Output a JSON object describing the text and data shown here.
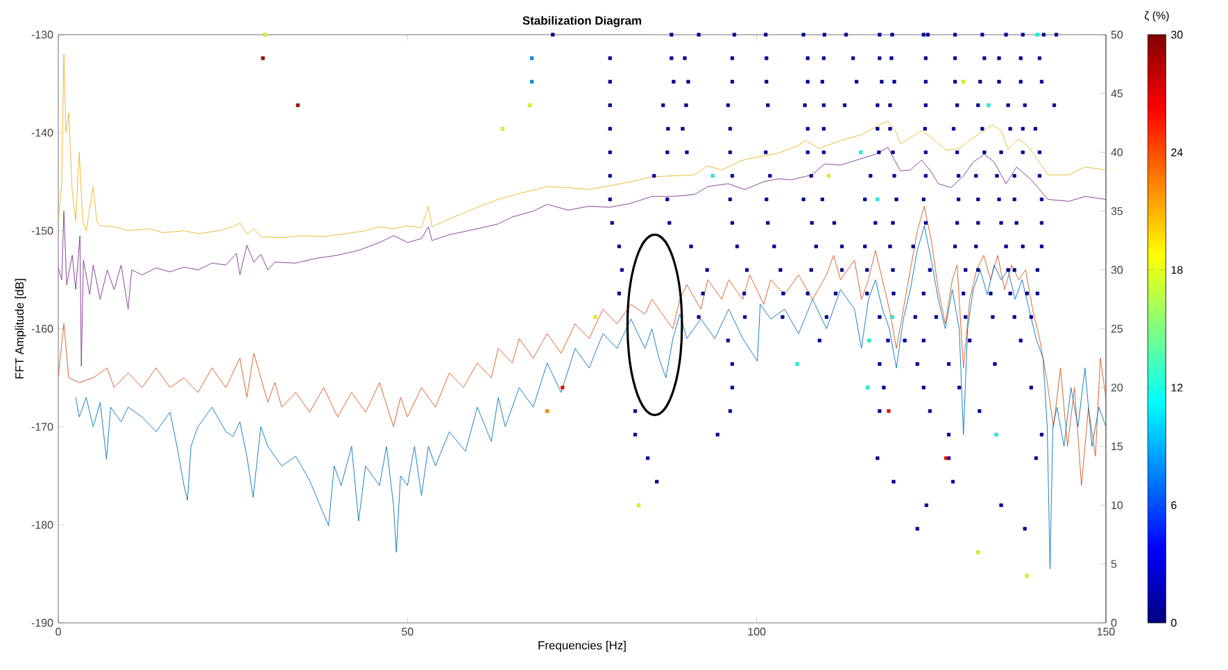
{
  "chart_data": {
    "type": "line",
    "title": "Stabilization Diagram",
    "xlabel": "Frequencies [Hz]",
    "ylabel": "FFT Amplitude [dB]",
    "clabel": "ζ (%)",
    "xlim": [
      0,
      150
    ],
    "xticks": [
      0,
      50,
      100,
      150
    ],
    "ylim": [
      -190,
      -130
    ],
    "yticks": [
      -190,
      -180,
      -170,
      -160,
      -150,
      -140,
      -130
    ],
    "y2lim": [
      0,
      50
    ],
    "y2ticks": [
      0,
      5,
      10,
      15,
      20,
      25,
      30,
      35,
      40,
      45,
      50
    ],
    "clim": [
      0,
      30
    ],
    "cticks": [
      0,
      6,
      12,
      18,
      24,
      30
    ],
    "series": [
      {
        "color": "#edb120",
        "x": [
          0,
          0.5,
          0.8,
          1.1,
          1.5,
          2,
          2.5,
          3,
          3.5,
          4,
          5,
          5.5,
          6,
          8,
          10,
          13,
          15,
          18,
          20,
          23,
          25,
          26,
          27,
          28,
          29,
          32,
          35,
          38,
          41,
          44,
          46,
          48,
          50,
          52,
          53,
          53.5,
          56,
          60,
          63,
          66,
          70,
          73,
          76,
          79,
          82,
          85,
          88,
          91,
          93,
          95,
          98,
          100,
          103,
          106,
          107,
          109,
          112,
          115,
          117.9,
          118.8,
          120,
          120.6,
          122,
          123.6,
          125,
          127.2,
          129,
          131,
          133.8,
          135,
          136,
          137.5,
          139,
          141.7,
          144.7,
          147,
          150
        ],
        "values": [
          -149,
          -145,
          -132,
          -140,
          -138,
          -146,
          -149,
          -142,
          -149,
          -150,
          -145.5,
          -149,
          -149.5,
          -149.6,
          -150,
          -149.8,
          -150.2,
          -150,
          -150.3,
          -150,
          -149.6,
          -149.2,
          -150.3,
          -149.8,
          -150.6,
          -150.7,
          -150.5,
          -150.6,
          -150.3,
          -150,
          -149.6,
          -149.8,
          -149.5,
          -149.7,
          -147.5,
          -149.6,
          -148.8,
          -147.6,
          -146.8,
          -146.2,
          -145.5,
          -145.6,
          -145.8,
          -145.4,
          -145,
          -144.5,
          -144.4,
          -144.3,
          -143.4,
          -143.8,
          -142.8,
          -142.5,
          -142.1,
          -141.3,
          -140.8,
          -141.6,
          -140.8,
          -140.2,
          -139.1,
          -138.8,
          -140,
          -141.1,
          -140.5,
          -139.8,
          -140.5,
          -141.8,
          -141.6,
          -140.5,
          -139.2,
          -139.8,
          -141.7,
          -140.6,
          -141.5,
          -144.3,
          -144.3,
          -143.5,
          -143.8
        ]
      },
      {
        "color": "#7e2f8e",
        "x": [
          0,
          0.5,
          0.8,
          1.2,
          2,
          2.5,
          3.1,
          3.3,
          3.6,
          4.5,
          5,
          6,
          7,
          8,
          9,
          10,
          10.5,
          12,
          14,
          16,
          18,
          20,
          22,
          24,
          25.5,
          26,
          27,
          28,
          29,
          30,
          31,
          34,
          37,
          40,
          43,
          46,
          48,
          50,
          52,
          53,
          53.5,
          56,
          60,
          63,
          65,
          68,
          70,
          73,
          76,
          79,
          82,
          85,
          88,
          91.1,
          93,
          95.9,
          98.3,
          101,
          103.1,
          105,
          107.9,
          109.7,
          112,
          115.2,
          117,
          118.8,
          119.5,
          120.6,
          122,
          123.6,
          125,
          126,
          127.8,
          129.5,
          131,
          132.6,
          134,
          135.7,
          137.2,
          139.3,
          141.7,
          144.7,
          147,
          150
        ],
        "values": [
          -153.8,
          -155,
          -148,
          -155.5,
          -152.5,
          -156,
          -150.5,
          -163.8,
          -153,
          -156.5,
          -153.5,
          -157,
          -154,
          -156,
          -153.5,
          -158,
          -154,
          -154.5,
          -153.8,
          -154.2,
          -153.7,
          -154,
          -153.3,
          -153.5,
          -152.3,
          -154.5,
          -151.5,
          -153.2,
          -152.4,
          -154,
          -153.2,
          -153.3,
          -152.8,
          -152.5,
          -152,
          -151.2,
          -150.5,
          -151.2,
          -150.8,
          -149.6,
          -151,
          -150.4,
          -149.8,
          -149.3,
          -148.6,
          -148,
          -147.3,
          -147.9,
          -147.5,
          -147.6,
          -147.2,
          -146.5,
          -146.5,
          -146.3,
          -145.5,
          -145.2,
          -145.8,
          -145,
          -144.7,
          -144.8,
          -144.3,
          -143.2,
          -143.3,
          -142.6,
          -142.2,
          -141.5,
          -142.5,
          -143.9,
          -143.8,
          -142.8,
          -144,
          -145.2,
          -145.6,
          -144.5,
          -143,
          -142.2,
          -143,
          -145.2,
          -143.5,
          -144.8,
          -146.8,
          -147,
          -146.5,
          -146.8
        ]
      },
      {
        "color": "#d95319",
        "x": [
          0,
          0.8,
          1.5,
          3,
          5,
          7,
          8,
          10,
          12,
          14,
          16,
          18,
          20,
          22,
          24,
          26,
          27,
          28,
          29,
          30,
          31,
          32,
          34,
          36,
          38,
          40,
          42,
          44,
          46,
          48,
          49,
          50,
          52,
          54,
          56,
          58,
          60,
          62,
          63,
          65,
          66,
          68,
          70,
          72,
          74,
          76,
          78,
          80,
          82,
          84,
          85,
          87,
          88,
          89,
          90,
          92,
          93,
          95,
          96,
          98,
          99,
          101,
          102,
          104,
          106,
          108,
          110,
          111,
          112,
          114,
          115,
          116,
          117,
          118,
          119,
          120,
          121,
          122,
          123,
          124,
          125,
          126,
          127,
          128,
          128.7,
          129.6,
          130.5,
          131.5,
          132.5,
          133.5,
          134.5,
          135.5,
          136.5,
          137.5,
          138.5,
          139.5,
          140.5,
          141.5,
          142.5,
          143.5,
          144.5,
          145.5,
          146.5,
          147.5,
          148.5,
          149.2,
          150
        ],
        "values": [
          -164.8,
          -159.5,
          -165,
          -165.5,
          -165,
          -164,
          -166,
          -164.5,
          -166,
          -164,
          -166,
          -165,
          -166.5,
          -164,
          -166,
          -163,
          -167,
          -162.5,
          -165,
          -167.5,
          -165.5,
          -168,
          -166.5,
          -168.5,
          -166,
          -169,
          -166.5,
          -168.5,
          -165.5,
          -170,
          -167,
          -169,
          -166,
          -168,
          -164.5,
          -166,
          -163.5,
          -165,
          -162,
          -163.5,
          -161,
          -163,
          -160.5,
          -162.5,
          -159.5,
          -161,
          -158,
          -159.5,
          -157.5,
          -158.5,
          -157,
          -159,
          -160,
          -157,
          -155.5,
          -158,
          -155,
          -157,
          -155,
          -157,
          -154.5,
          -157.5,
          -155,
          -156.5,
          -154.5,
          -157,
          -154.5,
          -152.5,
          -155,
          -153,
          -157,
          -155,
          -152,
          -155,
          -158,
          -162,
          -158,
          -154,
          -150,
          -147.5,
          -151,
          -156,
          -159.5,
          -155,
          -153.5,
          -164,
          -157,
          -154,
          -152.5,
          -155,
          -152.5,
          -156,
          -153.5,
          -155,
          -154,
          -158,
          -161,
          -165,
          -170,
          -164,
          -172,
          -166,
          -176,
          -168,
          -173,
          -163,
          -167
        ]
      },
      {
        "color": "#0072bd",
        "x": [
          2.5,
          3,
          4,
          5,
          6,
          6.9,
          7.5,
          9,
          10,
          12,
          14,
          16,
          17,
          18,
          18.5,
          19,
          20,
          22,
          24,
          25,
          26,
          27,
          27.9,
          29,
          30,
          32,
          34,
          36,
          38.7,
          39.5,
          40.5,
          42,
          43,
          44,
          46,
          47,
          48,
          48.4,
          49,
          50,
          51,
          52,
          53,
          54,
          56,
          58.3,
          60,
          62,
          63,
          64,
          66,
          68,
          70,
          72,
          74,
          76,
          78,
          80,
          82,
          84,
          85,
          86,
          87,
          88,
          89,
          90,
          92,
          94,
          96,
          98,
          100.1,
          100.5,
          102,
          104,
          106,
          108,
          110,
          112,
          114,
          115,
          116,
          117,
          118,
          119,
          120,
          121,
          122,
          123,
          124,
          125,
          126,
          127,
          128,
          129,
          129.6,
          130.2,
          131,
          132,
          133,
          134,
          135,
          136,
          137,
          138,
          139,
          140,
          141,
          141.6,
          142,
          142.4,
          143,
          144,
          145,
          146,
          147,
          148,
          149,
          150
        ],
        "values": [
          -167,
          -169,
          -167,
          -170,
          -167.5,
          -173.3,
          -168,
          -169.5,
          -168,
          -169,
          -170.5,
          -168.5,
          -172,
          -176,
          -177.5,
          -172,
          -170,
          -168,
          -170.5,
          -171,
          -169.5,
          -173,
          -177.2,
          -170,
          -172,
          -174,
          -173,
          -175.5,
          -180.1,
          -174,
          -176,
          -172,
          -179.6,
          -174,
          -176,
          -172,
          -178,
          -182.8,
          -175,
          -176,
          -172,
          -177,
          -172,
          -174,
          -170.5,
          -172.5,
          -168,
          -171.5,
          -167,
          -170,
          -166,
          -168,
          -163.5,
          -166.5,
          -162,
          -164,
          -160.5,
          -162,
          -159,
          -162,
          -160,
          -163,
          -165,
          -161,
          -158.5,
          -161,
          -159,
          -161,
          -158,
          -161,
          -163.3,
          -157.5,
          -159,
          -158,
          -160.5,
          -157,
          -160,
          -156,
          -158,
          -162,
          -157,
          -155,
          -158,
          -160,
          -164,
          -159,
          -156,
          -152,
          -149.5,
          -153,
          -157,
          -160,
          -156,
          -160,
          -170.8,
          -160,
          -156,
          -154,
          -156.5,
          -153.5,
          -155,
          -154,
          -157,
          -155,
          -158,
          -161,
          -163,
          -170,
          -184.5,
          -170,
          -168,
          -172,
          -166,
          -170,
          -164,
          -172,
          -168,
          -170
        ]
      },
      {
        "type": "scatter",
        "axis": "y2",
        "marker": "square",
        "x": [
          70.8,
          87.8,
          91.7,
          96.8,
          101.3,
          106.7,
          109.7,
          112.8,
          117.6,
          119.4,
          123.9,
          124.5,
          128.4,
          132.3,
          135.7,
          138.1,
          141.1,
          142.9
        ],
        "values": [
          50,
          50,
          50,
          50,
          50,
          50,
          50,
          50,
          50,
          50,
          50,
          50,
          50,
          50,
          50,
          50,
          50,
          50
        ],
        "cvalues": [
          1,
          1,
          1,
          1,
          1,
          1,
          1,
          1,
          1,
          1,
          1,
          1,
          1,
          1,
          1,
          1,
          1,
          1
        ]
      },
      {
        "type": "scatter",
        "axis": "y2",
        "marker": "square",
        "x": [
          79.0,
          87.8,
          89.7,
          96.5,
          101.4,
          107.3,
          109.6,
          113.8,
          117.6,
          119.3,
          124.2,
          128.4,
          132.6,
          134.7,
          137.8,
          140.5
        ],
        "values": [
          48,
          48,
          48,
          48,
          48,
          48,
          48,
          48,
          48,
          48,
          48,
          48,
          48,
          48,
          48,
          48
        ],
        "cvalues": [
          1,
          1,
          1,
          1,
          1,
          1,
          1,
          1,
          1,
          1,
          1,
          1,
          1,
          1,
          1,
          1
        ]
      },
      {
        "type": "scatter",
        "axis": "y2",
        "marker": "square",
        "x": [
          79.0,
          88.1,
          90.2,
          96.5,
          101.4,
          107.3,
          109.4,
          114.3,
          117.9,
          119.7,
          124.2,
          128.4,
          132.0,
          134.7,
          137.8,
          140.8
        ],
        "values": [
          46,
          46,
          46,
          46,
          46,
          46,
          46,
          46,
          46,
          46,
          46,
          46,
          46,
          46,
          46,
          46
        ],
        "cvalues": [
          1,
          1,
          1,
          1,
          1,
          1,
          1,
          1,
          1,
          1,
          1,
          1,
          1,
          1,
          1,
          1
        ]
      },
      {
        "type": "scatter",
        "axis": "y2",
        "marker": "square",
        "x": [
          79.0,
          86.6,
          89.9,
          95.9,
          101.6,
          106.9,
          109.6,
          112.6,
          117.3,
          119.1,
          124.2,
          128.7,
          131.7,
          136.0,
          138.4,
          142.6
        ],
        "values": [
          44,
          44,
          44,
          44,
          44,
          44,
          44,
          44,
          44,
          44,
          44,
          44,
          44,
          44,
          44,
          44
        ],
        "cvalues": [
          1,
          1,
          1,
          1,
          1,
          1,
          1,
          1,
          1,
          1,
          1,
          1,
          1,
          1,
          1,
          1
        ]
      },
      {
        "type": "scatter",
        "axis": "y2",
        "marker": "square",
        "x": [
          79.0,
          87.3,
          89.4,
          96.2,
          107.3,
          109.6,
          117.3,
          119.1,
          124.1,
          128.2,
          132.3,
          136.3,
          138.1,
          139.9
        ],
        "values": [
          42,
          42,
          42,
          42,
          42,
          42,
          42,
          42,
          42,
          42,
          42,
          42,
          42,
          42
        ],
        "cvalues": [
          1,
          1,
          1,
          1,
          1,
          1,
          1,
          1,
          1,
          1,
          1,
          1,
          1,
          1
        ]
      },
      {
        "type": "scatter",
        "axis": "y2",
        "marker": "square",
        "x": [
          79.0,
          87.2,
          90.0,
          96.2,
          101.3,
          107.3,
          109.6,
          117.5,
          119.5,
          124.2,
          128.7,
          132.6,
          135.0,
          138.1,
          140.5
        ],
        "values": [
          40,
          40,
          40,
          40,
          40,
          40,
          40,
          40,
          40,
          40,
          40,
          40,
          40,
          40,
          40
        ],
        "cvalues": [
          1,
          1,
          1,
          1,
          1,
          1,
          1,
          1,
          1,
          1,
          1,
          1,
          1,
          1,
          1
        ]
      },
      {
        "type": "scatter",
        "axis": "y2",
        "marker": "square",
        "x": [
          79.0,
          85.3,
          96.5,
          101.9,
          107.8,
          116.3,
          119.7,
          124.2,
          128.9,
          131.4,
          134.4,
          136.9,
          140.5
        ],
        "values": [
          38,
          38,
          38,
          38,
          38,
          38,
          38,
          38,
          38,
          38,
          38,
          38,
          38
        ],
        "cvalues": [
          1,
          1,
          1,
          1,
          1,
          1,
          1,
          1,
          1,
          1,
          1,
          1,
          1
        ]
      },
      {
        "type": "scatter",
        "axis": "y2",
        "marker": "square",
        "x": [
          79.0,
          87.2,
          96.2,
          101.4,
          106.7,
          109.4,
          115.5,
          120.0,
          123.9,
          128.9,
          131.7,
          134.7,
          136.9,
          140.8
        ],
        "values": [
          36,
          36,
          36,
          36,
          36,
          36,
          36,
          36,
          36,
          36,
          36,
          36,
          36,
          36
        ],
        "cvalues": [
          1,
          1,
          1,
          1,
          1,
          1,
          1,
          1,
          1,
          1,
          1,
          1,
          1,
          1
        ]
      },
      {
        "type": "scatter",
        "axis": "y2",
        "marker": "square",
        "x": [
          79.3,
          87.5,
          96.5,
          101.6,
          107.9,
          111.1,
          117.0,
          119.5,
          124.2,
          128.7,
          131.7,
          135.0,
          137.2,
          140.8
        ],
        "values": [
          34,
          34,
          34,
          34,
          34,
          34,
          34,
          34,
          34,
          34,
          34,
          34,
          34,
          34
        ],
        "cvalues": [
          1,
          1,
          1,
          1,
          1,
          1,
          1,
          1,
          1,
          1,
          1,
          1,
          1,
          1
        ]
      },
      {
        "type": "scatter",
        "axis": "y2",
        "marker": "square",
        "x": [
          80.3,
          90.6,
          97.2,
          102.5,
          108.5,
          112.2,
          115.5,
          119.1,
          122.4,
          128.4,
          131.4,
          135.7,
          138.1,
          140.8
        ],
        "values": [
          32,
          32,
          32,
          32,
          32,
          32,
          32,
          32,
          32,
          32,
          32,
          32,
          32,
          32
        ],
        "cvalues": [
          1,
          1,
          1,
          1,
          1,
          1,
          1,
          1,
          1,
          1,
          1,
          1,
          1,
          1
        ]
      },
      {
        "type": "scatter",
        "axis": "y2",
        "marker": "square",
        "x": [
          80.7,
          92.9,
          98.6,
          103.4,
          107.8,
          112.2,
          115.8,
          119.5,
          124.8,
          129.9,
          131.7,
          136.0,
          136.9,
          140.2
        ],
        "values": [
          30,
          30,
          30,
          30,
          30,
          30,
          30,
          30,
          30,
          30,
          30,
          30,
          30,
          30
        ],
        "cvalues": [
          1,
          1,
          1,
          1,
          1,
          1,
          1,
          1,
          1,
          1,
          1,
          1,
          1,
          1
        ]
      },
      {
        "type": "scatter",
        "axis": "y2",
        "marker": "square",
        "x": [
          80.3,
          92.3,
          98.2,
          103.8,
          107.3,
          111.3,
          115.8,
          119.6,
          123.9,
          129.6,
          133.5,
          136.3,
          138.7,
          140.2
        ],
        "values": [
          28,
          28,
          28,
          28,
          28,
          28,
          28,
          28,
          28,
          28,
          28,
          28,
          28,
          28
        ],
        "cvalues": [
          1,
          1,
          1,
          1,
          1,
          1,
          1,
          1,
          1,
          1,
          1,
          1,
          1,
          1
        ]
      },
      {
        "type": "scatter",
        "axis": "y2",
        "marker": "square",
        "x": [
          91.7,
          98.3,
          103.7,
          110.0,
          117.6,
          122.7,
          125.7,
          129.9,
          133.8,
          136.9,
          139.3
        ],
        "values": [
          26,
          26,
          26,
          26,
          26,
          26,
          26,
          26,
          26,
          26,
          26
        ],
        "cvalues": [
          1,
          1,
          1,
          1,
          1,
          1,
          1,
          1,
          1,
          1,
          1
        ]
      },
      {
        "type": "scatter",
        "axis": "y2",
        "marker": "square",
        "x": [
          95.9,
          109.0,
          118.8,
          121.2,
          123.9,
          130.5,
          137.8
        ],
        "values": [
          24,
          24,
          24,
          24,
          24,
          24,
          24
        ],
        "cvalues": [
          1,
          1,
          1,
          1,
          1,
          1,
          1
        ]
      },
      {
        "type": "scatter",
        "axis": "y2",
        "marker": "square",
        "x": [
          96.5,
          117.6,
          123.0,
          127.5,
          134.1
        ],
        "values": [
          22,
          22,
          22,
          22,
          22
        ],
        "cvalues": [
          1,
          1,
          1,
          1,
          1
        ]
      },
      {
        "type": "scatter",
        "axis": "y2",
        "marker": "square",
        "x": [
          96.5,
          118.2,
          123.9,
          129.0,
          139.3
        ],
        "values": [
          20,
          20,
          20,
          20,
          20
        ],
        "cvalues": [
          1,
          1,
          1,
          1,
          1
        ]
      },
      {
        "type": "scatter",
        "axis": "y2",
        "marker": "square",
        "x": [
          82.6,
          96.2,
          117.6,
          124.8,
          131.9
        ],
        "values": [
          18,
          18,
          18,
          18,
          18
        ],
        "cvalues": [
          1,
          1,
          1,
          1,
          1
        ]
      },
      {
        "type": "scatter",
        "axis": "y2",
        "marker": "square",
        "x": [
          82.6,
          94.4,
          127.5,
          140.8
        ],
        "values": [
          16,
          16,
          16,
          16
        ],
        "cvalues": [
          1,
          1,
          1,
          1
        ]
      },
      {
        "type": "scatter",
        "axis": "y2",
        "marker": "square",
        "x": [
          84.4,
          117.3,
          127.5,
          140.0
        ],
        "values": [
          14,
          14,
          14,
          14
        ],
        "cvalues": [
          1,
          1,
          1,
          1
        ]
      },
      {
        "type": "scatter",
        "axis": "y2",
        "marker": "square",
        "x": [
          85.7,
          119.6,
          128.1
        ],
        "values": [
          12,
          12,
          12
        ],
        "cvalues": [
          1,
          1,
          1
        ]
      },
      {
        "type": "scatter",
        "axis": "y2",
        "marker": "square",
        "x": [
          124.3,
          135.0
        ],
        "values": [
          10,
          10
        ],
        "cvalues": [
          1,
          1
        ]
      },
      {
        "type": "scatter",
        "axis": "y2",
        "marker": "square",
        "x": [
          123.0,
          138.4
        ],
        "values": [
          8,
          8
        ],
        "cvalues": [
          1,
          1
        ]
      },
      {
        "type": "scatter",
        "axis": "y2",
        "marker": "square",
        "x": [
          29.6,
          129.6,
          67.5,
          63.6,
          110.3,
          76.9,
          83.1,
          131.7,
          138.7
        ],
        "values": [
          50,
          46,
          44,
          42,
          38,
          26,
          10,
          6,
          4
        ],
        "cvalues": [
          18,
          18,
          18,
          18,
          18,
          18,
          18,
          18,
          18
        ]
      },
      {
        "type": "scatter",
        "axis": "y2",
        "marker": "square",
        "x": [
          140.2,
          133.2,
          114.9,
          93.7,
          117.3,
          119.4,
          116.1,
          105.8,
          115.9,
          134.3
        ],
        "values": [
          50,
          44,
          40,
          38,
          36,
          26,
          24,
          22,
          20,
          16
        ],
        "cvalues": [
          12,
          12,
          12,
          12,
          12,
          12,
          12,
          12,
          12,
          12
        ]
      },
      {
        "type": "scatter",
        "axis": "y2",
        "marker": "square",
        "x": [
          67.8,
          67.8
        ],
        "values": [
          48,
          46
        ],
        "cvalues": [
          8,
          8
        ]
      },
      {
        "type": "scatter",
        "axis": "y2",
        "marker": "square",
        "x": [
          29.3,
          34.3
        ],
        "values": [
          48,
          44
        ],
        "cvalues": [
          29,
          29
        ]
      },
      {
        "type": "scatter",
        "axis": "y2",
        "marker": "square",
        "x": [
          72.2,
          118.9,
          127.1
        ],
        "values": [
          20,
          18,
          14
        ],
        "cvalues": [
          26,
          26,
          26
        ]
      },
      {
        "type": "scatter",
        "axis": "y2",
        "marker": "square",
        "x": [
          70.0
        ],
        "values": [
          18
        ],
        "cvalues": [
          22
        ]
      }
    ]
  }
}
